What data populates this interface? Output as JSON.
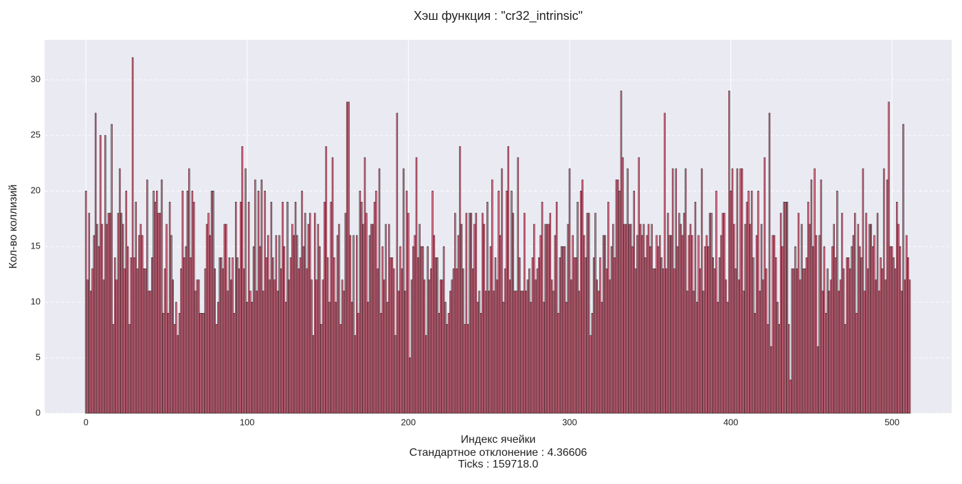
{
  "chart_data": {
    "type": "bar",
    "title": "Хэш функция : \"cr32_intrinsic\"",
    "xlabel": "Индекс ячейки",
    "annotations": [
      "Стандартное отклонение : 4.36606",
      "Ticks : 159718.0"
    ],
    "ylabel": "Кол-во коллизий",
    "color": "#f7708e",
    "edgecolor": "#1a1a1a",
    "background": "#eaeaf2",
    "grid": true,
    "xlim": [
      -25.6,
      537
    ],
    "ylim": [
      0,
      33.6
    ],
    "xticks": [
      0,
      100,
      200,
      300,
      400,
      500
    ],
    "yticks": [
      0,
      5,
      10,
      15,
      20,
      25,
      30
    ],
    "values": [
      20,
      12,
      18,
      11,
      13,
      16,
      27,
      17,
      15,
      25,
      17,
      12,
      25,
      17,
      18,
      18,
      26,
      8,
      14,
      12,
      18,
      22,
      18,
      17,
      13,
      20,
      15,
      8,
      14,
      32,
      14,
      19,
      13,
      16,
      17,
      16,
      13,
      13,
      21,
      11,
      11,
      14,
      20,
      19,
      20,
      18,
      18,
      21,
      9,
      13,
      17,
      9,
      19,
      16,
      12,
      8,
      10,
      7,
      9,
      13,
      20,
      14,
      15,
      20,
      22,
      14,
      20,
      19,
      11,
      12,
      12,
      9,
      9,
      9,
      13,
      17,
      18,
      16,
      20,
      20,
      13,
      8,
      10,
      14,
      14,
      13,
      17,
      17,
      11,
      14,
      12,
      14,
      9,
      19,
      14,
      13,
      19,
      24,
      13,
      22,
      10,
      19,
      11,
      10,
      15,
      21,
      11,
      20,
      15,
      21,
      11,
      20,
      14,
      16,
      12,
      19,
      14,
      12,
      16,
      11,
      16,
      13,
      19,
      15,
      10,
      19,
      12,
      14,
      17,
      16,
      19,
      16,
      13,
      14,
      20,
      15,
      18,
      13,
      17,
      18,
      12,
      7,
      18,
      12,
      17,
      15,
      8,
      12,
      19,
      24,
      14,
      10,
      19,
      23,
      14,
      10,
      16,
      17,
      8,
      12,
      11,
      18,
      28,
      28,
      16,
      10,
      16,
      7,
      16,
      9,
      20,
      19,
      17,
      23,
      18,
      10,
      16,
      17,
      17,
      19,
      20,
      13,
      22,
      9,
      15,
      12,
      17,
      10,
      17,
      14,
      14,
      13,
      7,
      27,
      11,
      15,
      13,
      22,
      11,
      20,
      18,
      5,
      12,
      15,
      16,
      23,
      14,
      17,
      15,
      15,
      12,
      7,
      15,
      12,
      13,
      20,
      16,
      14,
      14,
      9,
      12,
      12,
      15,
      10,
      8,
      9,
      11,
      12,
      13,
      18,
      13,
      16,
      24,
      17,
      13,
      8,
      18,
      8,
      18,
      18,
      13,
      17,
      18,
      10,
      11,
      9,
      18,
      17,
      11,
      19,
      11,
      15,
      21,
      11,
      14,
      12,
      20,
      16,
      22,
      10,
      13,
      20,
      24,
      12,
      20,
      18,
      11,
      11,
      23,
      14,
      11,
      11,
      18,
      11,
      12,
      13,
      10,
      14,
      17,
      12,
      13,
      14,
      16,
      19,
      10,
      17,
      17,
      17,
      18,
      12,
      11,
      16,
      19,
      9,
      14,
      15,
      15,
      15,
      10,
      17,
      22,
      12,
      16,
      14,
      14,
      19,
      11,
      20,
      21,
      16,
      14,
      18,
      18,
      7,
      9,
      14,
      18,
      12,
      11,
      14,
      10,
      16,
      16,
      13,
      19,
      12,
      15,
      17,
      14,
      21,
      21,
      20,
      29,
      23,
      17,
      17,
      22,
      17,
      17,
      15,
      20,
      13,
      16,
      23,
      17,
      16,
      17,
      14,
      16,
      17,
      15,
      17,
      13,
      13,
      16,
      15,
      16,
      14,
      13,
      27,
      13,
      18,
      16,
      16,
      22,
      13,
      22,
      15,
      18,
      17,
      16,
      18,
      22,
      11,
      16,
      17,
      16,
      11,
      19,
      10,
      16,
      13,
      22,
      11,
      15,
      16,
      15,
      18,
      18,
      14,
      13,
      20,
      10,
      14,
      16,
      18,
      18,
      12,
      10,
      29,
      20,
      22,
      17,
      13,
      22,
      12,
      22,
      22,
      11,
      17,
      19,
      20,
      17,
      20,
      14,
      9,
      16,
      20,
      11,
      17,
      12,
      23,
      13,
      8,
      27,
      6,
      16,
      16,
      14,
      10,
      8,
      18,
      15,
      19,
      19,
      19,
      8,
      3,
      13,
      13,
      15,
      13,
      18,
      12,
      17,
      13,
      13,
      14,
      19,
      17,
      21,
      15,
      22,
      16,
      6,
      16,
      21,
      11,
      15,
      9,
      13,
      11,
      12,
      15,
      17,
      14,
      20,
      11,
      12,
      18,
      13,
      8,
      14,
      14,
      13,
      15,
      16,
      18,
      9,
      17,
      15,
      14,
      22,
      11,
      18,
      13,
      17,
      17,
      15,
      16,
      12,
      18,
      11,
      14,
      13,
      22,
      12,
      21,
      28,
      15,
      15,
      14,
      13,
      19,
      17,
      15,
      11,
      26,
      12,
      16,
      14,
      12
    ]
  }
}
